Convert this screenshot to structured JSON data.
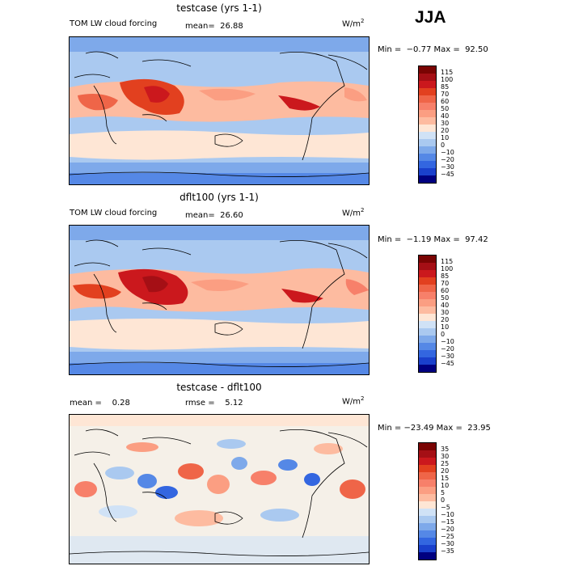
{
  "season": "JJA",
  "palette": {
    "warm": [
      "#7a0403",
      "#a50f15",
      "#cb181d",
      "#e2401f",
      "#ef6548",
      "#f7806a",
      "#fb9e82",
      "#fdbba0",
      "#fee6d5"
    ],
    "neutral": "#f5f0e8",
    "cool": [
      "#d0e2f6",
      "#aac9f0",
      "#7ea9ea",
      "#5588e6",
      "#3366e0",
      "#1a40cc",
      "#0a22a6",
      "#000080"
    ]
  },
  "panels": [
    {
      "title": "testcase (yrs 1-1)",
      "left_label": "TOM LW cloud forcing",
      "mid_label": "mean=  26.88",
      "units": "W/m",
      "minmax": "Min =  −0.77 Max =  92.50",
      "colorbar_levels": [
        "115",
        "100",
        "85",
        "70",
        "60",
        "50",
        "40",
        "30",
        "20",
        "10",
        "0",
        "−10",
        "−20",
        "−30",
        "−45"
      ]
    },
    {
      "title": "dflt100 (yrs 1-1)",
      "left_label": "TOM LW cloud forcing",
      "mid_label": "mean=  26.60",
      "units": "W/m",
      "minmax": "Min =  −1.19 Max =  97.42",
      "colorbar_levels": [
        "115",
        "100",
        "85",
        "70",
        "60",
        "50",
        "40",
        "30",
        "20",
        "10",
        "0",
        "−10",
        "−20",
        "−30",
        "−45"
      ]
    },
    {
      "title": "testcase - dflt100",
      "left_label": "mean =    0.28",
      "mid_label": "rmse =    5.12",
      "units": "W/m",
      "minmax": "Min = −23.49 Max =  23.95",
      "colorbar_levels": [
        "35",
        "30",
        "25",
        "20",
        "15",
        "10",
        "5",
        "0",
        "−5",
        "−10",
        "−15",
        "−20",
        "−25",
        "−30",
        "−35"
      ]
    }
  ]
}
